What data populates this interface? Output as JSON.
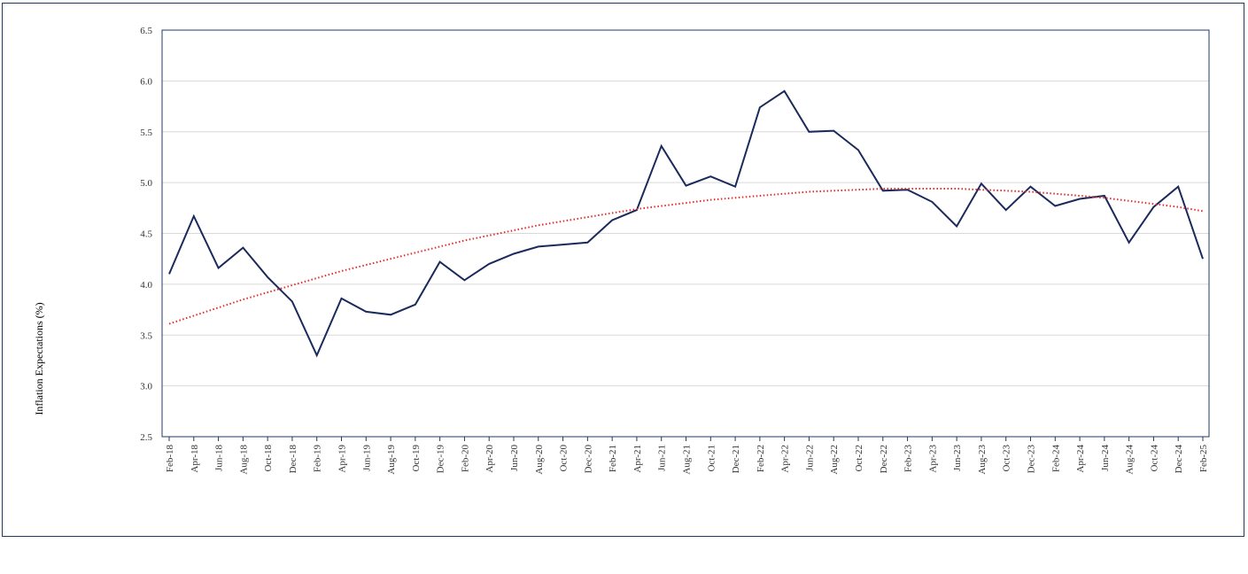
{
  "chart_data": {
    "type": "line",
    "ylabel": "Inflation Expectations (%)",
    "xlabel": "",
    "ylim": [
      2.5,
      6.5
    ],
    "yticks": [
      "2.5",
      "3.0",
      "3.5",
      "4.0",
      "4.5",
      "5.0",
      "5.5",
      "6.0",
      "6.5"
    ],
    "grid": "horizontal",
    "x": [
      "Feb-18",
      "Apr-18",
      "Jun-18",
      "Aug-18",
      "Oct-18",
      "Dec-18",
      "Feb-19",
      "Apr-19",
      "Jun-19",
      "Aug-19",
      "Oct-19",
      "Dec-19",
      "Feb-20",
      "Apr-20",
      "Jun-20",
      "Aug-20",
      "Oct-20",
      "Dec-20",
      "Feb-21",
      "Apr-21",
      "Jun-21",
      "Aug-21",
      "Oct-21",
      "Dec-21",
      "Feb-22",
      "Apr-22",
      "Jun-22",
      "Aug-22",
      "Oct-22",
      "Dec-22",
      "Feb-23",
      "Apr-23",
      "Jun-23",
      "Aug-23",
      "Oct-23",
      "Dec-23",
      "Feb-24",
      "Apr-24",
      "Jun-24",
      "Aug-24",
      "Oct-24",
      "Dec-24",
      "Feb-25"
    ],
    "series": [
      {
        "color": "#1b2a5c",
        "style": "solid",
        "values": [
          4.1,
          4.67,
          4.16,
          4.36,
          4.07,
          3.83,
          3.3,
          3.86,
          3.73,
          3.7,
          3.8,
          4.22,
          4.04,
          4.2,
          4.3,
          4.37,
          4.39,
          4.41,
          4.63,
          4.73,
          5.36,
          4.97,
          5.06,
          4.96,
          5.74,
          5.9,
          5.5,
          5.51,
          5.32,
          4.92,
          4.93,
          4.81,
          4.57,
          4.99,
          4.73,
          4.96,
          4.77,
          4.84,
          4.87,
          4.41,
          4.76,
          4.96,
          4.25
        ]
      },
      {
        "color": "#e32b2b",
        "style": "dotted",
        "trendline": "polynomial",
        "values": [
          3.61,
          3.69,
          3.77,
          3.85,
          3.92,
          3.99,
          4.06,
          4.13,
          4.19,
          4.25,
          4.31,
          4.37,
          4.43,
          4.48,
          4.53,
          4.58,
          4.62,
          4.66,
          4.7,
          4.74,
          4.77,
          4.8,
          4.83,
          4.85,
          4.87,
          4.89,
          4.91,
          4.92,
          4.93,
          4.94,
          4.94,
          4.94,
          4.94,
          4.93,
          4.92,
          4.91,
          4.89,
          4.87,
          4.85,
          4.82,
          4.79,
          4.76,
          4.72
        ]
      }
    ]
  }
}
